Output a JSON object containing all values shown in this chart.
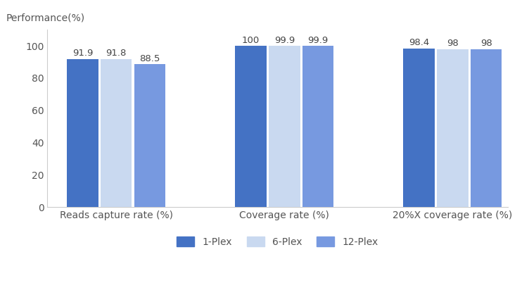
{
  "categories": [
    "Reads capture rate (%)",
    "Coverage rate (%)",
    "20%X coverage rate (%)"
  ],
  "series": {
    "1-Plex": [
      91.9,
      100.0,
      98.4
    ],
    "6-Plex": [
      91.8,
      99.9,
      98.0
    ],
    "12-Plex": [
      88.5,
      99.9,
      98.0
    ]
  },
  "colors": {
    "1-Plex": "#4472c4",
    "6-Plex": "#c9d9f0",
    "12-Plex": "#7799e0"
  },
  "labels": {
    "1-Plex": [
      "91.9",
      "100",
      "98.4"
    ],
    "6-Plex": [
      "91.8",
      "99.9",
      "98"
    ],
    "12-Plex": [
      "88.5",
      "99.9",
      "98"
    ]
  },
  "ylabel": "Performance(%)",
  "ylim": [
    0,
    110
  ],
  "yticks": [
    0,
    20,
    40,
    60,
    80,
    100
  ],
  "background_color": "#ffffff",
  "bar_width": 0.22,
  "label_fontsize": 9.5,
  "axis_fontsize": 10,
  "legend_fontsize": 10,
  "title_color": "#555555",
  "tick_color": "#555555"
}
